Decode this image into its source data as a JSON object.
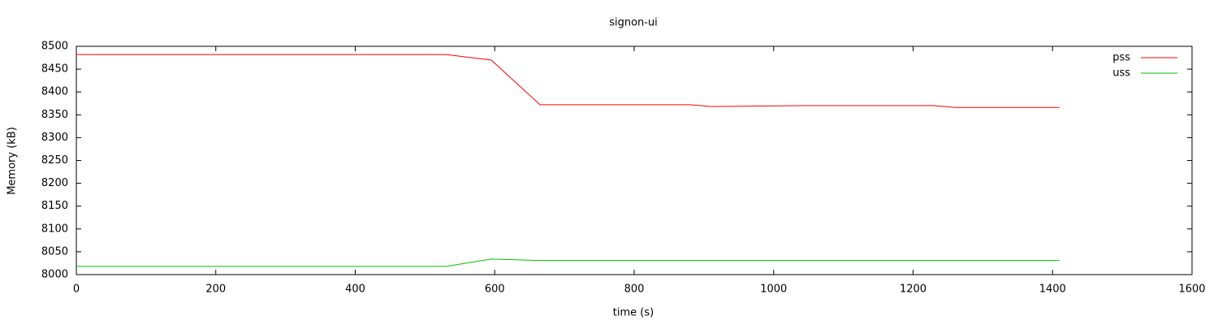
{
  "chart_data": {
    "type": "line",
    "title": "signon-ui",
    "x_label": "time (s)",
    "y_label": "Memory (kB)",
    "x": [
      0,
      530,
      595,
      665,
      880,
      910,
      1040,
      1230,
      1260,
      1410
    ],
    "series": [
      {
        "name": "pss",
        "color": "#ff0000",
        "values": [
          8482,
          8482,
          8470,
          8372,
          8372,
          8368,
          8370,
          8370,
          8366,
          8366
        ]
      },
      {
        "name": "uss",
        "color": "#00c000",
        "values": [
          8018,
          8018,
          8034,
          8031,
          8031,
          8031,
          8031,
          8031,
          8031,
          8031
        ]
      }
    ],
    "xlim": [
      0,
      1600
    ],
    "xticks": [
      0,
      200,
      400,
      600,
      800,
      1000,
      1200,
      1400,
      1600
    ],
    "ylim": [
      8000,
      8500
    ],
    "yticks": [
      8000,
      8050,
      8100,
      8150,
      8200,
      8250,
      8300,
      8350,
      8400,
      8450,
      8500
    ],
    "grid": false,
    "legend": "top-right"
  }
}
